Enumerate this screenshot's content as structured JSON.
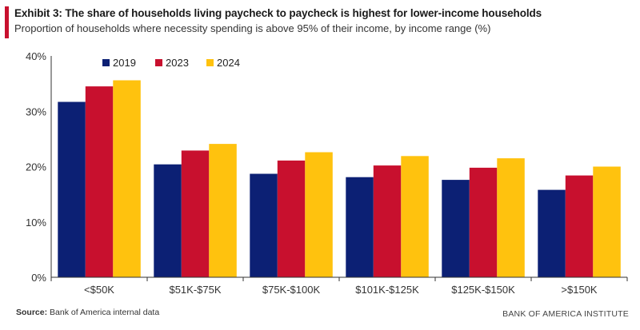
{
  "header": {
    "title": "Exhibit 3: The share of households living paycheck to paycheck is highest for lower-income households",
    "subtitle": "Proportion of households where necessity spending is above 95% of their income, by income range (%)"
  },
  "footer": {
    "source_label": "Source:",
    "source_text": "Bank of America internal data",
    "brand": "BANK OF AMERICA INSTITUTE"
  },
  "colors": {
    "accent": "#c8102e",
    "series_2019": "#0c2074",
    "series_2023": "#c8102e",
    "series_2024": "#ffc20e",
    "axis": "#333333"
  },
  "chart_data": {
    "type": "bar",
    "title": "",
    "xlabel": "",
    "ylabel": "",
    "categories": [
      "<$50K",
      "$51K-$75K",
      "$75K-$100K",
      "$101K-$125K",
      "$125K-$150K",
      ">$150K"
    ],
    "series": [
      {
        "name": "2019",
        "color": "#0c2074",
        "values": [
          31.7,
          20.4,
          18.7,
          18.1,
          17.6,
          15.8
        ]
      },
      {
        "name": "2023",
        "color": "#c8102e",
        "values": [
          34.5,
          22.9,
          21.1,
          20.2,
          19.8,
          18.4
        ]
      },
      {
        "name": "2024",
        "color": "#ffc20e",
        "values": [
          35.6,
          24.1,
          22.6,
          21.9,
          21.5,
          20.0
        ]
      }
    ],
    "ylim": [
      0,
      40
    ],
    "yticks": [
      0,
      10,
      20,
      30,
      40
    ],
    "ytick_labels": [
      "0%",
      "10%",
      "20%",
      "30%",
      "40%"
    ],
    "grid": false,
    "legend_position": "top-center"
  }
}
